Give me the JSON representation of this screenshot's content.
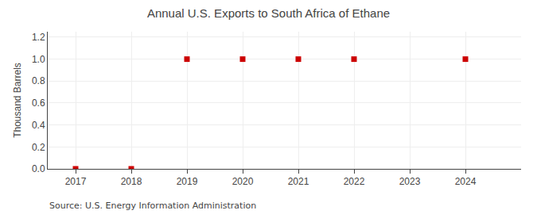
{
  "chart_data": {
    "type": "scatter",
    "title": "Annual U.S. Exports to South Africa of Ethane",
    "ylabel": "Thousand Barrels",
    "annotations": [
      "Source: U.S. Energy Information Administration"
    ],
    "x": [
      2017,
      2018,
      2019,
      2020,
      2021,
      2022,
      2024
    ],
    "values": [
      0.0,
      0.0,
      1.0,
      1.0,
      1.0,
      1.0,
      1.0
    ],
    "color": "#CC0000",
    "marker": "square",
    "xlim": [
      2016.5,
      2025.0
    ],
    "xticks": [
      2017,
      2018,
      2019,
      2020,
      2021,
      2022,
      2023,
      2024
    ],
    "ylim": [
      0.0,
      1.25
    ],
    "yticks": [
      {
        "value": 0.0,
        "label": "0.0"
      },
      0.2,
      0.4,
      0.6,
      0.8,
      {
        "value": 1.0,
        "label": "1.0"
      },
      1.2
    ],
    "grid": true
  }
}
